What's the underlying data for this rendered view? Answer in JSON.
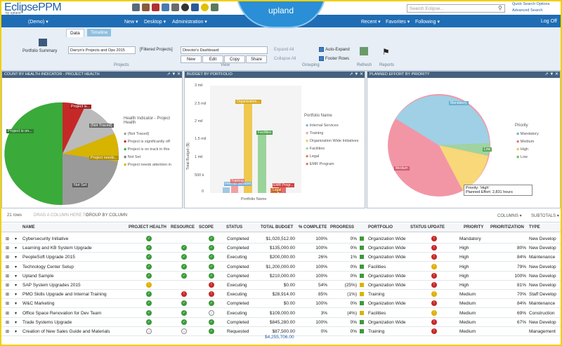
{
  "header": {
    "logo": "EclipsePPM",
    "logo_sub": "by upland",
    "brand": "upland",
    "search_placeholder": "Search Eclipse...",
    "quick_search": "Quick Search Options",
    "advanced_search": "Advanced Search"
  },
  "nav": {
    "demo": "(Demo)",
    "new": "New",
    "desktop": "Desktop",
    "administration": "Administration",
    "recent": "Recent",
    "favorites": "Favorites",
    "following": "Following",
    "logoff": "Log Off"
  },
  "ribbon": {
    "tab_data": "Data",
    "tab_timeline": "Timeline",
    "portfolio_summary": "Portfolio Summary",
    "projects_select": "Darryn's Projects and Ops 2015",
    "filtered": "[Filtered Projects]",
    "dashboard_select": "Director's Dashboard",
    "btn_new": "New",
    "btn_edit": "Edit",
    "btn_copy": "Copy",
    "btn_share": "Share",
    "expand_all": "Expand All",
    "collapse_all": "Collapse All",
    "auto_expand": "Auto-Expand",
    "footer_rows": "Footer Rows",
    "refresh": "Refresh",
    "reports": "Reports",
    "group_projects": "Projects",
    "group_view": "View",
    "group_grouping": "Grouping"
  },
  "panels": {
    "health_title": "COUNT BY HEALTH INDICATOR - PROJECT HEALTH",
    "budget_title": "BUDGET BY PORTFOLIO",
    "effort_title": "PLANNED EFFORT BY PRIORITY",
    "health_legend_title": "Health Indicator - Project Health",
    "health_legend": [
      "(Not Traced)",
      "Project is significantly off",
      "Project is on track in this",
      "Not Set",
      "Project needs attention in"
    ],
    "health_labels": [
      "Project is...",
      "(Not Traced)",
      "Project is on...",
      "Project needs...",
      "Not Set"
    ],
    "budget_legend_title": "Portfolio Name",
    "budget_legend": [
      "Internal Services",
      "Training",
      "Organization Wide Initiatives",
      "Facilities",
      "Legal",
      "EMR Program"
    ],
    "budget_ylabel": "Total Budget ($)",
    "budget_xlabel": "Portfolio Name",
    "budget_yticks": [
      "3 mil",
      "2.5 mil",
      "2 mil",
      "1.5 mil",
      "1 mil",
      "500 k",
      "0"
    ],
    "budget_bar_labels": [
      "Training",
      "Organization...",
      "Facilities",
      "Internal Services",
      "EMR Progr...",
      "Legal"
    ],
    "effort_legend_title": "Priority",
    "effort_legend": [
      "Mandatory",
      "Medium",
      "High",
      "Low"
    ],
    "effort_labels": [
      "Mandatory",
      "Medium",
      "Low"
    ],
    "tooltip_priority": "Priority: 'High'",
    "tooltip_effort": "Planned Effort: 2,831 hours"
  },
  "grid": {
    "rows_count": "21 rows",
    "drag_hint": "DRAG A COLUMN HERE TO",
    "group_by": "GROUP BY COLUMN",
    "columns_btn": "COLUMNS",
    "subtotals_btn": "SUBTOTALS",
    "headers": [
      "NAME",
      "PROJECT HEALTH",
      "RESOURCE",
      "SCOPE",
      "STATUS",
      "TOTAL BUDGET",
      "% COMPLETE",
      "PROGRESS",
      "PORTFOLIO",
      "STATUS UPDATE",
      "PRIORITY",
      "PRIORITIZATION",
      "TYPE"
    ],
    "rows": [
      {
        "name": "Cybersecurity Initiative",
        "status": "Completed",
        "budget": "$1,020,512.00",
        "pct": "100%",
        "progress": "0%",
        "portfolio": "Organization Wide",
        "priority": "Mandatory",
        "prio": "",
        "type": "New Develop"
      },
      {
        "name": "Learning and KB System Upgrade",
        "status": "Completed",
        "budget": "$135,000.00",
        "pct": "100%",
        "progress": "0%",
        "portfolio": "Organization Wide",
        "priority": "High",
        "prio": "80%",
        "type": "New Develop"
      },
      {
        "name": "PeopleSoft Upgrade 2015",
        "status": "Executing",
        "budget": "$200,000.00",
        "pct": "26%",
        "progress": "1%",
        "portfolio": "Organization Wide",
        "priority": "High",
        "prio": "84%",
        "type": "Maintenance"
      },
      {
        "name": "Technology Center Setup",
        "status": "Completed",
        "budget": "$1,200,000.00",
        "pct": "100%",
        "progress": "0%",
        "portfolio": "Facilities",
        "priority": "High",
        "prio": "79%",
        "type": "New Develop"
      },
      {
        "name": "Upland Sample",
        "status": "Completed",
        "budget": "$210,000.00",
        "pct": "100%",
        "progress": "0%",
        "portfolio": "Organization Wide",
        "priority": "High",
        "prio": "100%",
        "type": "New Develop"
      },
      {
        "name": "SAP System Upgrades 2015",
        "status": "Executing",
        "budget": "$0.00",
        "pct": "54%",
        "progress": "(25%)",
        "portfolio": "Organization Wide",
        "priority": "High",
        "prio": "81%",
        "type": "New Develop"
      },
      {
        "name": "PMO Skills Upgrade and Internal Training",
        "status": "Executing",
        "budget": "$28,914.00",
        "pct": "85%",
        "progress": "(1%)",
        "portfolio": "Training",
        "priority": "Medium",
        "prio": "70%",
        "type": "Staff Develop"
      },
      {
        "name": "W&C Marketing",
        "status": "Completed",
        "budget": "$0.00",
        "pct": "100%",
        "progress": "0%",
        "portfolio": "Organization Wide",
        "priority": "Medium",
        "prio": "84%",
        "type": "Maintenance"
      },
      {
        "name": "Office Space Renovation for Dev Team",
        "status": "Executing",
        "budget": "$109,000.00",
        "pct": "3%",
        "progress": "(4%)",
        "portfolio": "Facilities",
        "priority": "Medium",
        "prio": "69%",
        "type": "Construction"
      },
      {
        "name": "Trade Systems Upgrade",
        "status": "Completed",
        "budget": "$845,280.00",
        "pct": "100%",
        "progress": "0%",
        "portfolio": "Organization Wide",
        "priority": "Medium",
        "prio": "67%",
        "type": "New Develop"
      },
      {
        "name": "Creation of New Sales Guide and Materials",
        "status": "Requested",
        "budget": "$87,500.00",
        "pct": "0%",
        "progress": "0%",
        "portfolio": "Training",
        "priority": "Medium",
        "prio": "",
        "type": "Management"
      }
    ],
    "total": "$4,255,706.00"
  }
}
